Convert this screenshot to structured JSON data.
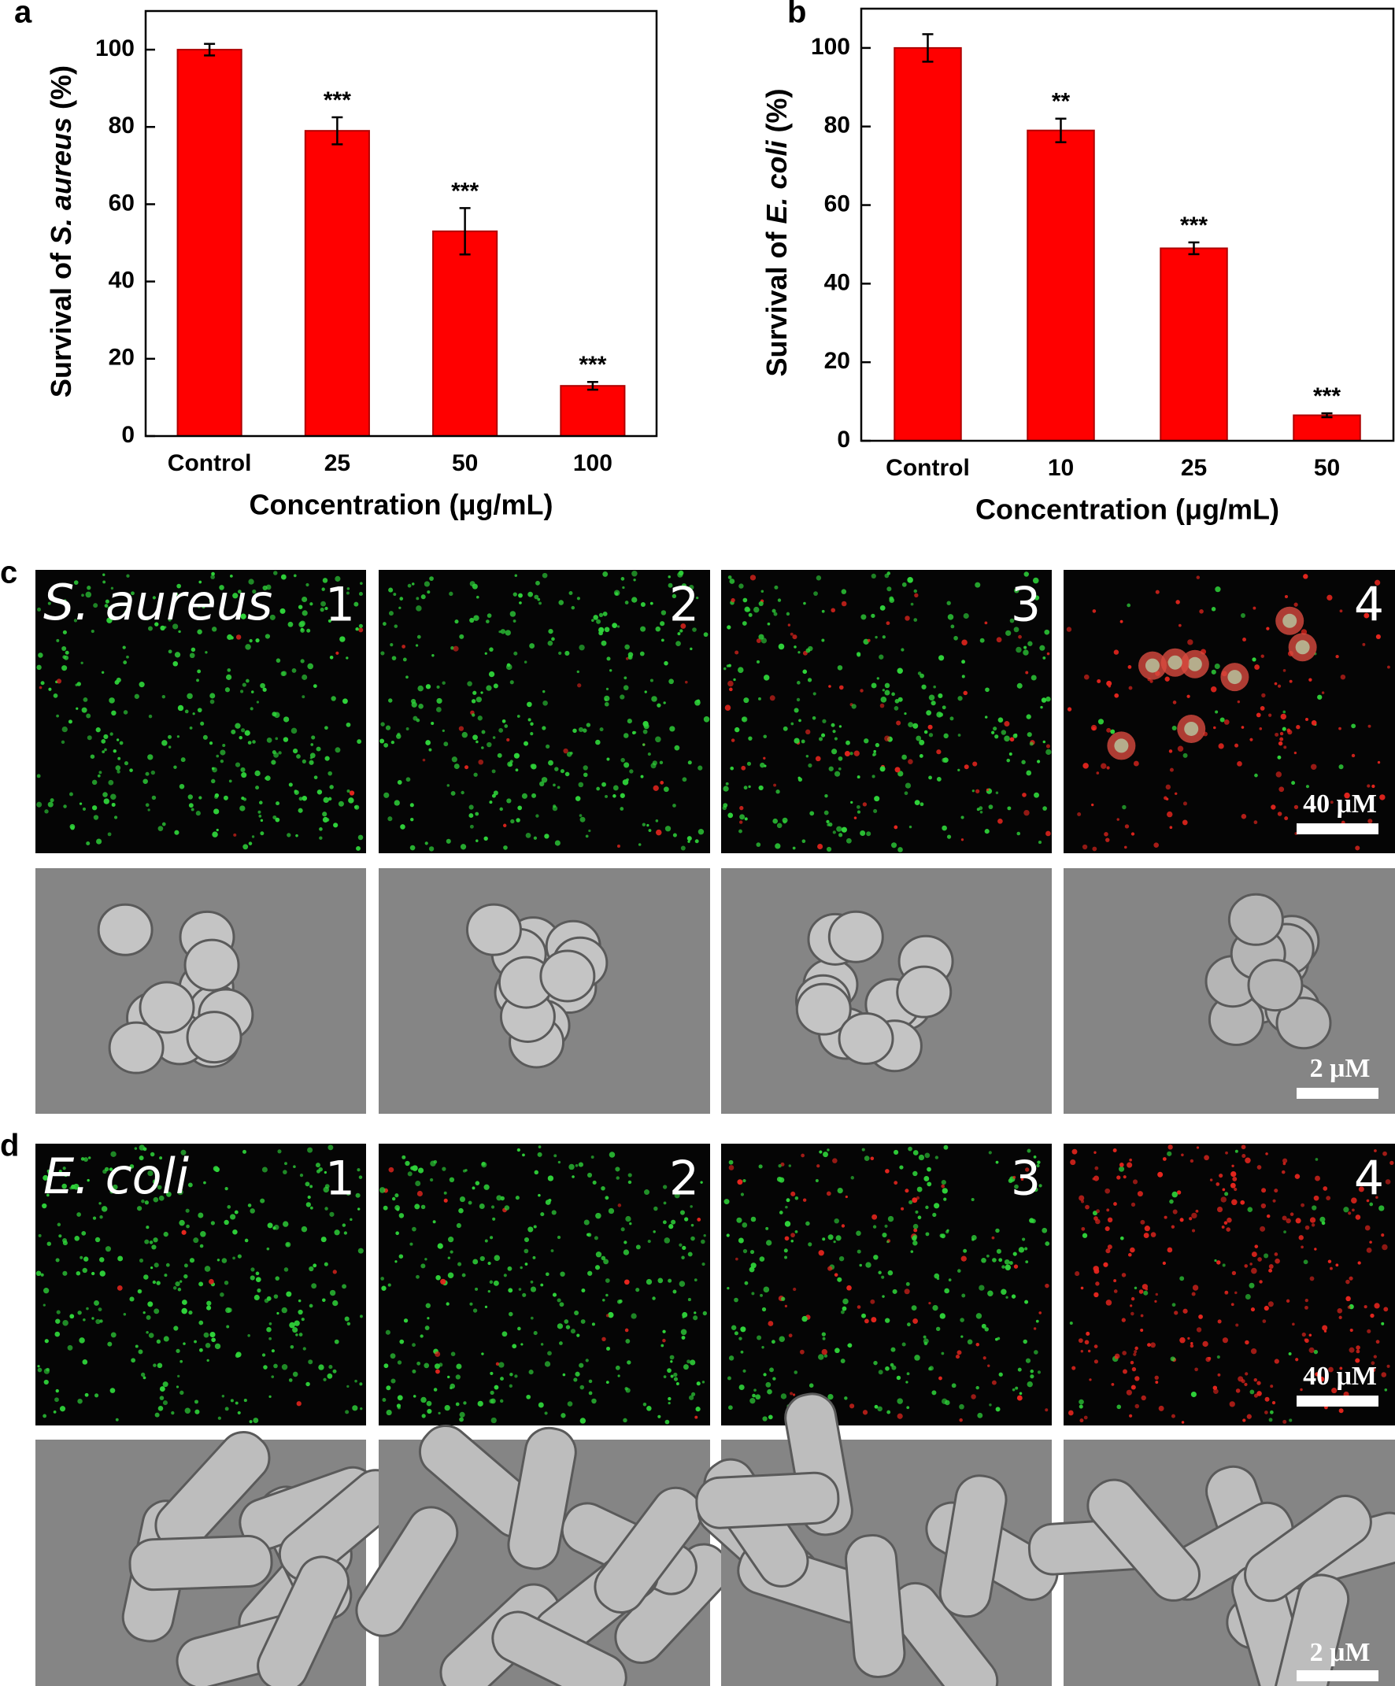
{
  "chart_data": [
    {
      "type": "bar",
      "panel_label": "a",
      "ylabel": [
        "Survival of",
        "S. aureus",
        "(%)"
      ],
      "xlabel": "Concentration (μg/mL)",
      "categories": [
        "Control",
        "25",
        "50",
        "100"
      ],
      "values": [
        100,
        79,
        53,
        13
      ],
      "errors": [
        1.5,
        3.5,
        6,
        1
      ],
      "annotations": [
        null,
        "***",
        "***",
        "***"
      ],
      "color": "#ff0000",
      "ylim": [
        0,
        110
      ],
      "yticks": [
        0,
        20,
        40,
        60,
        80,
        100
      ]
    },
    {
      "type": "bar",
      "panel_label": "b",
      "ylabel": [
        "Survival of",
        "E. coli",
        "(%)"
      ],
      "xlabel": "Concentration (μg/mL)",
      "categories": [
        "Control",
        "10",
        "25",
        "50"
      ],
      "values": [
        100,
        79,
        49,
        6.5
      ],
      "errors": [
        3.5,
        3,
        1.5,
        0.5
      ],
      "annotations": [
        null,
        "**",
        "***",
        "***"
      ],
      "color": "#ff0000",
      "ylim": [
        0,
        110
      ],
      "yticks": [
        0,
        20,
        40,
        60,
        80,
        100
      ]
    }
  ],
  "image_panels": [
    {
      "label": "c",
      "organism": "S. aureus",
      "numbers": [
        "1",
        "2",
        "3",
        "4"
      ],
      "fluorescence_scale": "40 μM",
      "sem_scale": "2 μM"
    },
    {
      "label": "d",
      "organism": "E. coli",
      "numbers": [
        "1",
        "2",
        "3",
        "4"
      ],
      "fluorescence_scale": "40 μM",
      "sem_scale": "2 μM"
    }
  ]
}
